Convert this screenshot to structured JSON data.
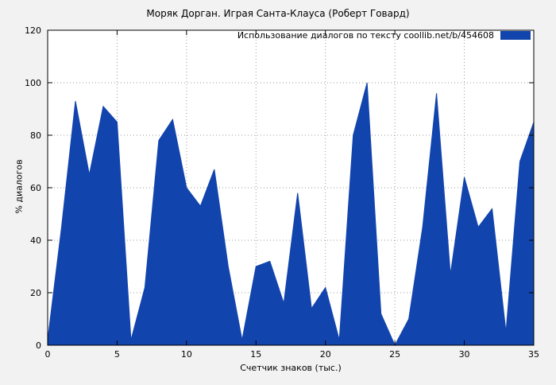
{
  "colors": {
    "accent": "#1244ad",
    "plot_bg": "#ffffff",
    "page_bg": "#f2f2f2",
    "grid": "#9a9a9a",
    "axis": "#000000"
  },
  "chart_data": {
    "type": "area",
    "title": "Моряк Дорган. Играя Санта-Клауса (Роберт Говард)",
    "legend_label": "Использование диалогов по тексту  coollib.net/b/454608",
    "xlabel": "Счетчик знаков (тыс.)",
    "ylabel": "% диалогов",
    "x": [
      0,
      1,
      2,
      3,
      4,
      5,
      6,
      7,
      8,
      9,
      10,
      11,
      12,
      13,
      14,
      15,
      16,
      17,
      18,
      19,
      20,
      21,
      22,
      23,
      24,
      25,
      26,
      27,
      28,
      29,
      30,
      31,
      32,
      33,
      34,
      35
    ],
    "values": [
      2,
      45,
      93,
      65,
      91,
      85,
      2,
      22,
      78,
      86,
      60,
      53,
      67,
      30,
      2,
      30,
      32,
      16,
      58,
      14,
      22,
      2,
      80,
      100,
      12,
      0,
      10,
      45,
      96,
      27,
      64,
      45,
      52,
      5,
      70,
      85
    ],
    "xlim": [
      0,
      35
    ],
    "ylim": [
      0,
      120
    ],
    "xtick_step": 5,
    "ytick_step": 20,
    "grid": true,
    "legend_position": "top-right"
  }
}
